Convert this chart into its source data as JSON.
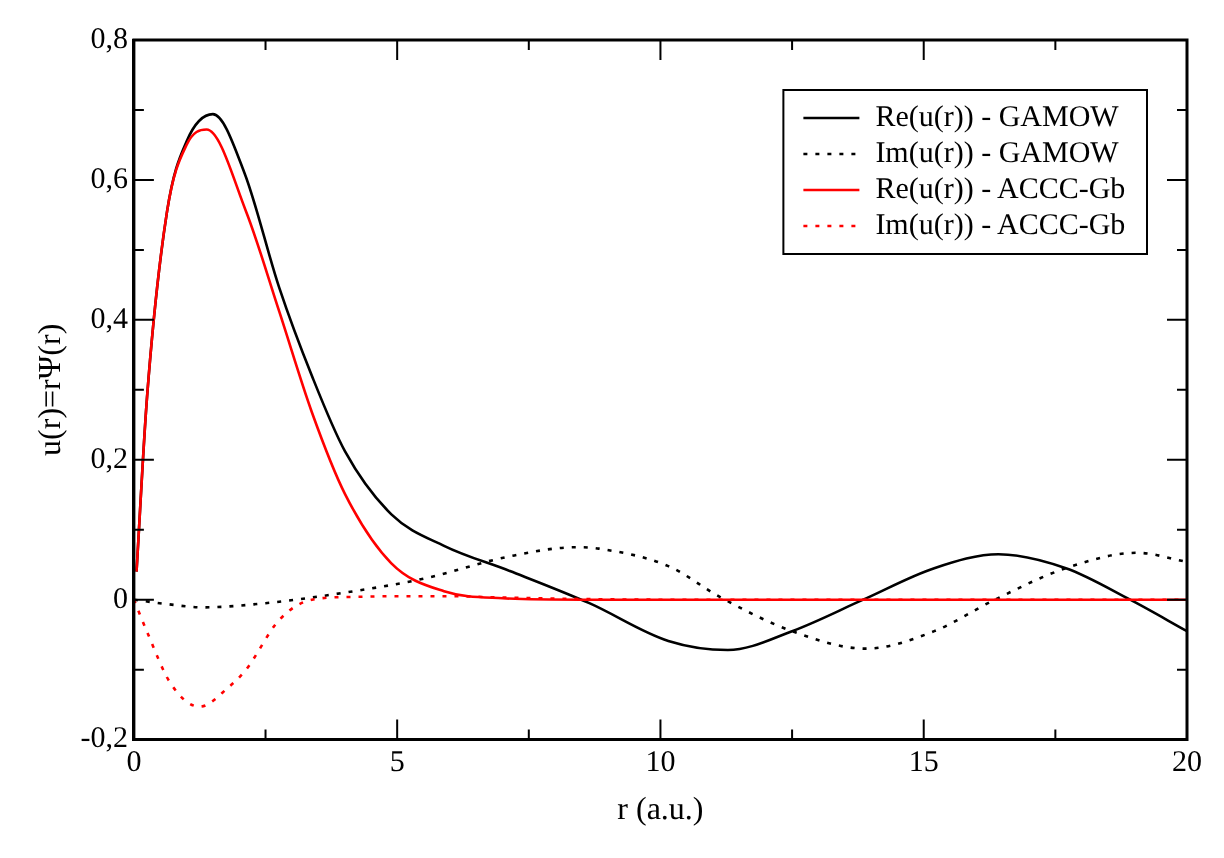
{
  "chart_data": {
    "type": "line",
    "xlabel": "r (a.u.)",
    "ylabel": "u(r)=rΨ(r)",
    "xlim": [
      0,
      20
    ],
    "ylim": [
      -0.2,
      0.8
    ],
    "xticks": [
      0,
      {
        "value": 2.5,
        "label": null
      },
      5,
      {
        "value": 7.5,
        "label": null
      },
      10,
      {
        "value": 12.5,
        "label": null
      },
      15,
      {
        "value": 17.5,
        "label": null
      },
      20
    ],
    "yticks": [
      {
        "value": -0.2,
        "label": "-0,2"
      },
      {
        "value": -0.1,
        "label": null
      },
      0,
      {
        "value": 0.1,
        "label": null
      },
      {
        "value": 0.2,
        "label": "0,2"
      },
      {
        "value": 0.3,
        "label": null
      },
      {
        "value": 0.4,
        "label": "0,4"
      },
      {
        "value": 0.5,
        "label": null
      },
      {
        "value": 0.6,
        "label": "0,6"
      },
      {
        "value": 0.7,
        "label": null
      },
      {
        "value": 0.8,
        "label": "0,8"
      }
    ],
    "grid": false,
    "legend": "top right",
    "marker": "none",
    "series": [
      {
        "name": "Re(u(r)) - GAMOW",
        "color": "#000000",
        "line_style": "solid",
        "x": [
          0.05,
          0.25,
          0.63,
          1.0,
          1.5,
          2.1,
          2.76,
          3.38,
          4.01,
          4.89,
          5.89,
          7.14,
          8.65,
          10.15,
          11.28,
          12.5,
          13.85,
          15.2,
          16.42,
          17.7,
          18.92,
          20
        ],
        "values": [
          0.04,
          0.29,
          0.555,
          0.655,
          0.694,
          0.61,
          0.446,
          0.32,
          0.212,
          0.122,
          0.077,
          0.041,
          -0.005,
          -0.059,
          -0.072,
          -0.045,
          0,
          0.045,
          0.065,
          0.045,
          0,
          -0.045
        ]
      },
      {
        "name": "Im(u(r)) - GAMOW",
        "color": "#000000",
        "line_style": "dotted",
        "x": [
          0,
          0.6,
          1.3,
          2.5,
          4,
          5.5,
          7.14,
          8.4,
          8.83,
          10.15,
          11.15,
          12.5,
          13.9,
          15.2,
          16.35,
          17.7,
          19.05,
          20
        ],
        "values": [
          0,
          -0.006,
          -0.011,
          -0.005,
          0.01,
          0.03,
          0.062,
          0.075,
          0.073,
          0.048,
          0.003,
          -0.045,
          -0.07,
          -0.045,
          0,
          0.045,
          0.067,
          0.054
        ]
      },
      {
        "name": "Re(u(r)) - ACCC-Gb",
        "color": "#ff0000",
        "line_style": "solid",
        "x": [
          0.05,
          0.25,
          0.63,
          1.0,
          1.38,
          2.13,
          2.76,
          3.38,
          4.01,
          4.89,
          5.89,
          7,
          8.5,
          10,
          12,
          14,
          16,
          18,
          20
        ],
        "values": [
          0.04,
          0.29,
          0.555,
          0.65,
          0.672,
          0.555,
          0.412,
          0.268,
          0.151,
          0.052,
          0.012,
          0.002,
          0,
          0,
          0,
          0,
          0,
          0,
          0
        ]
      },
      {
        "name": "Im(u(r)) - ACCC-Gb",
        "color": "#ff0000",
        "line_style": "dotted",
        "x": [
          0,
          0.25,
          0.7,
          1.25,
          1.8,
          2.13,
          2.76,
          3.38,
          4.2,
          5,
          6,
          7,
          8.5,
          10,
          12,
          14,
          16,
          18,
          20
        ],
        "values": [
          0,
          -0.046,
          -0.12,
          -0.153,
          -0.125,
          -0.1,
          -0.029,
          0,
          0.004,
          0.005,
          0.005,
          0.003,
          0.001,
          0,
          0,
          0,
          0,
          0,
          0
        ]
      }
    ]
  }
}
